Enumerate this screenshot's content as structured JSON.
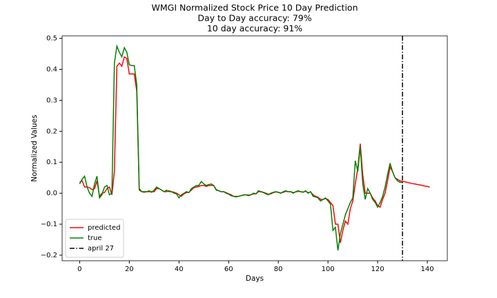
{
  "chart_data": {
    "type": "line",
    "title": "WMGI Normalized Stock Price 10 Day Prediction",
    "subtitles": [
      "Day to Day accuracy: 79%",
      "10 day accuracy: 91%"
    ],
    "xlabel": "Days",
    "ylabel": "Normalized Values",
    "x": [
      0,
      1,
      2,
      3,
      4,
      5,
      6,
      7,
      8,
      9,
      10,
      11,
      12,
      13,
      14,
      15,
      16,
      17,
      18,
      19,
      20,
      21,
      22,
      23,
      24,
      25,
      26,
      27,
      28,
      29,
      30,
      31,
      32,
      33,
      34,
      35,
      36,
      37,
      38,
      39,
      40,
      41,
      42,
      43,
      44,
      45,
      46,
      47,
      48,
      49,
      50,
      51,
      52,
      53,
      54,
      55,
      56,
      57,
      58,
      59,
      60,
      61,
      62,
      63,
      64,
      65,
      66,
      67,
      68,
      69,
      70,
      71,
      72,
      73,
      74,
      75,
      76,
      77,
      78,
      79,
      80,
      81,
      82,
      83,
      84,
      85,
      86,
      87,
      88,
      89,
      90,
      91,
      92,
      93,
      94,
      95,
      96,
      97,
      98,
      99,
      100,
      101,
      102,
      103,
      104,
      105,
      106,
      107,
      108,
      109,
      110,
      111,
      112,
      113,
      114,
      115,
      116,
      117,
      118,
      119,
      120,
      121,
      122,
      123,
      124,
      125,
      126,
      127,
      128,
      129,
      130,
      131,
      132,
      133,
      134,
      135,
      136,
      137,
      138,
      139,
      140,
      141
    ],
    "series": [
      {
        "name": "predicted",
        "color": "#ff0000",
        "values": [
          0.035,
          0.04,
          0.02,
          0.02,
          0.018,
          0.012,
          0.015,
          0.04,
          -0.01,
          0.0,
          0.002,
          0.015,
          0.02,
          -0.005,
          0.07,
          0.41,
          0.42,
          0.41,
          0.44,
          0.435,
          0.385,
          0.385,
          0.385,
          0.33,
          0.01,
          0.005,
          0.003,
          0.005,
          0.005,
          0.005,
          0.005,
          0.015,
          0.015,
          0.01,
          0.005,
          0.005,
          0.008,
          0.005,
          0.003,
          0.0,
          -0.005,
          -0.01,
          -0.002,
          0.002,
          0.003,
          0.01,
          0.018,
          0.02,
          0.022,
          0.025,
          0.025,
          0.022,
          0.025,
          0.025,
          0.025,
          0.012,
          0.008,
          0.005,
          0.005,
          0.002,
          -0.002,
          -0.005,
          -0.01,
          -0.01,
          -0.01,
          -0.008,
          -0.006,
          -0.005,
          -0.006,
          -0.005,
          -0.002,
          -0.002,
          0.005,
          0.005,
          0.003,
          0.0,
          -0.003,
          -0.002,
          0.002,
          0.004,
          0.003,
          0.001,
          0.003,
          0.006,
          0.005,
          0.005,
          0.002,
          0.004,
          0.006,
          0.005,
          0.004,
          0.006,
          0.002,
          0.004,
          -0.005,
          -0.01,
          -0.013,
          -0.02,
          -0.02,
          -0.017,
          -0.02,
          -0.03,
          -0.04,
          -0.1,
          -0.1,
          -0.16,
          -0.12,
          -0.09,
          -0.1,
          -0.05,
          -0.025,
          0.03,
          0.08,
          0.16,
          0.06,
          0.0,
          0.0,
          0.0,
          -0.015,
          -0.025,
          -0.04,
          -0.045,
          -0.02,
          0.0,
          0.04,
          0.085,
          0.07,
          0.05,
          0.045,
          0.04,
          0.038,
          0.037,
          0.035,
          0.033,
          0.031,
          0.03,
          0.028,
          0.027,
          0.025,
          0.023,
          0.022,
          0.02
        ]
      },
      {
        "name": "true",
        "color": "#008000",
        "values": [
          0.03,
          0.045,
          0.055,
          0.02,
          0.0,
          -0.01,
          0.03,
          0.055,
          -0.015,
          -0.005,
          0.02,
          0.025,
          -0.005,
          0.0,
          0.42,
          0.475,
          0.455,
          0.44,
          0.47,
          0.455,
          0.415,
          0.412,
          0.412,
          0.35,
          0.015,
          0.005,
          0.005,
          0.005,
          0.008,
          0.003,
          0.01,
          0.02,
          0.015,
          0.01,
          0.005,
          0.01,
          0.005,
          0.005,
          0.0,
          -0.002,
          -0.015,
          -0.005,
          0.0,
          0.005,
          0.002,
          0.015,
          0.02,
          0.025,
          0.025,
          0.038,
          0.03,
          0.025,
          0.028,
          0.03,
          0.025,
          0.01,
          0.008,
          0.005,
          0.005,
          0.0,
          -0.003,
          -0.008,
          -0.01,
          -0.012,
          -0.01,
          -0.008,
          -0.005,
          -0.005,
          -0.008,
          -0.005,
          0.0,
          -0.002,
          0.008,
          0.005,
          0.002,
          -0.002,
          -0.005,
          0.0,
          0.003,
          0.005,
          0.003,
          0.0,
          0.005,
          0.008,
          0.005,
          0.005,
          0.0,
          0.005,
          0.008,
          0.005,
          0.003,
          0.008,
          0.0,
          0.005,
          -0.01,
          -0.012,
          -0.015,
          -0.025,
          -0.02,
          -0.015,
          -0.025,
          -0.035,
          -0.12,
          -0.11,
          -0.185,
          -0.13,
          -0.1,
          -0.07,
          -0.05,
          -0.03,
          -0.015,
          0.105,
          0.07,
          0.15,
          0.03,
          -0.02,
          0.015,
          0.0,
          -0.02,
          -0.03,
          -0.045,
          -0.03,
          -0.01,
          0.02,
          0.06,
          0.097,
          0.07,
          0.05,
          0.04,
          0.035,
          0.035,
          null,
          null,
          null,
          null,
          null,
          null,
          null,
          null,
          null,
          null,
          null
        ]
      }
    ],
    "vline": {
      "x": 130,
      "label": "april 27",
      "color": "#000000"
    },
    "xlim": [
      -7.05,
      148.05
    ],
    "xticks": [
      0,
      20,
      40,
      60,
      80,
      100,
      120,
      140
    ],
    "ylim": [
      -0.218,
      0.508
    ],
    "yticks": [
      {
        "value": -0.2,
        "label": "−0.2"
      },
      {
        "value": -0.1,
        "label": "−0.1"
      },
      {
        "value": 0,
        "label": "0.0"
      },
      0.1,
      0.2,
      0.3,
      0.4,
      0.5
    ],
    "legend": "lower left",
    "grid": false
  }
}
